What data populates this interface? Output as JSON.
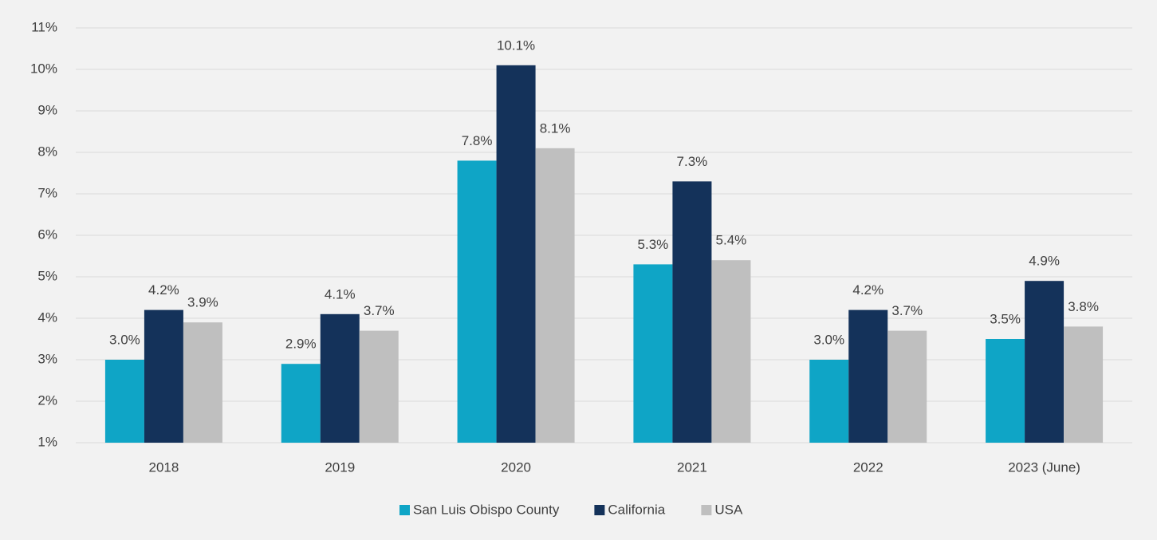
{
  "chart_data": {
    "type": "bar",
    "categories": [
      "2018",
      "2019",
      "2020",
      "2021",
      "2022",
      "2023 (June)"
    ],
    "series": [
      {
        "name": "San Luis Obispo County",
        "color": "#0fa5c6",
        "values": [
          3.0,
          2.9,
          7.8,
          5.3,
          3.0,
          3.5
        ],
        "value_labels": [
          "3.0%",
          "2.9%",
          "7.8%",
          "5.3%",
          "3.0%",
          "3.5%"
        ]
      },
      {
        "name": "California",
        "color": "#14325a",
        "values": [
          4.2,
          4.1,
          10.1,
          7.3,
          4.2,
          4.9
        ],
        "value_labels": [
          "4.2%",
          "4.1%",
          "10.1%",
          "7.3%",
          "4.2%",
          "4.9%"
        ]
      },
      {
        "name": "USA",
        "color": "#bfbfbf",
        "values": [
          3.9,
          3.7,
          8.1,
          5.4,
          3.7,
          3.8
        ],
        "value_labels": [
          "3.9%",
          "3.7%",
          "8.1%",
          "5.4%",
          "3.7%",
          "3.8%"
        ]
      }
    ],
    "ylim": [
      1,
      11
    ],
    "yticks": [
      {
        "value": 1,
        "label": "1%"
      },
      {
        "value": 2,
        "label": "2%"
      },
      {
        "value": 3,
        "label": "3%"
      },
      {
        "value": 4,
        "label": "4%"
      },
      {
        "value": 5,
        "label": "5%"
      },
      {
        "value": 6,
        "label": "6%"
      },
      {
        "value": 7,
        "label": "7%"
      },
      {
        "value": 8,
        "label": "8%"
      },
      {
        "value": 9,
        "label": "9%"
      },
      {
        "value": 10,
        "label": "10%"
      },
      {
        "value": 11,
        "label": "11%"
      }
    ],
    "grid": true,
    "legend": "bottom"
  }
}
